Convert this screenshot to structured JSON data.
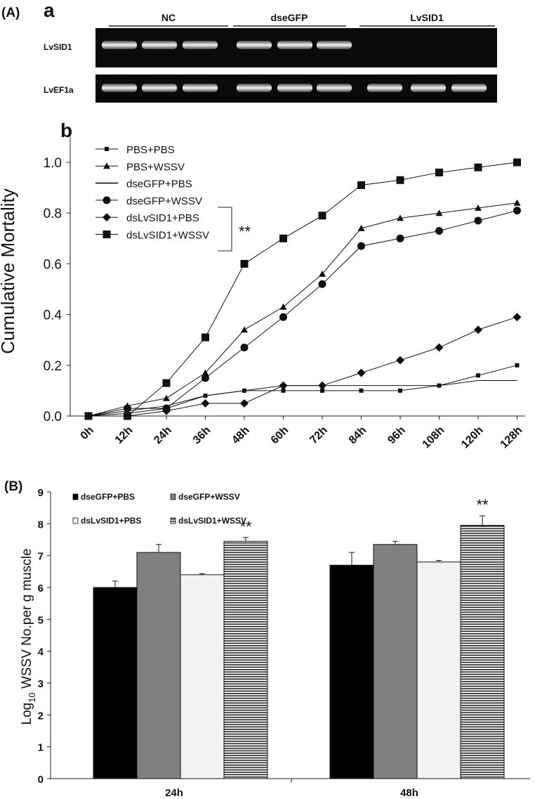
{
  "panelA": {
    "label": "(A)",
    "sublabel": "a",
    "groups": [
      "NC",
      "dseGFP",
      "LvSID1"
    ],
    "rows": [
      "LvSID1",
      "LvEF1a"
    ]
  },
  "chart_data": [
    {
      "type": "line",
      "panel": "b",
      "xlabel": "",
      "ylabel": "Cumulative Mortality",
      "x": [
        "0h",
        "12h",
        "24h",
        "36h",
        "48h",
        "60h",
        "72h",
        "84h",
        "96h",
        "108h",
        "120h",
        "128h"
      ],
      "ylim": [
        0,
        1.0
      ],
      "yticks": [
        "0.0",
        "0.2",
        "0.4",
        "0.6",
        "0.8",
        "1.0"
      ],
      "legend_position": "top-left",
      "significance": "**",
      "series": [
        {
          "name": "PBS+PBS",
          "marker": "small-square",
          "values": [
            0.0,
            0.01,
            0.03,
            0.08,
            0.1,
            0.1,
            0.1,
            0.1,
            0.1,
            0.12,
            0.16,
            0.2
          ]
        },
        {
          "name": "PBS+WSSV",
          "marker": "triangle",
          "values": [
            0.0,
            0.04,
            0.07,
            0.17,
            0.34,
            0.43,
            0.56,
            0.74,
            0.78,
            0.8,
            0.82,
            0.84
          ]
        },
        {
          "name": "dseGFP+PBS",
          "marker": "dash",
          "values": [
            0.0,
            0.02,
            0.04,
            0.08,
            0.1,
            0.12,
            0.12,
            0.12,
            0.12,
            0.12,
            0.14,
            0.14
          ]
        },
        {
          "name": "dseGFP+WSSV",
          "marker": "circle",
          "values": [
            0.0,
            0.03,
            0.03,
            0.15,
            0.27,
            0.39,
            0.52,
            0.67,
            0.7,
            0.73,
            0.77,
            0.81
          ]
        },
        {
          "name": "dsLvSID1+PBS",
          "marker": "diamond",
          "values": [
            0.0,
            0.0,
            0.02,
            0.05,
            0.05,
            0.12,
            0.12,
            0.17,
            0.22,
            0.27,
            0.34,
            0.39
          ]
        },
        {
          "name": "dsLvSID1+WSSV",
          "marker": "big-square",
          "values": [
            0.0,
            0.0,
            0.13,
            0.31,
            0.6,
            0.7,
            0.79,
            0.91,
            0.93,
            0.96,
            0.98,
            1.0
          ]
        }
      ]
    },
    {
      "type": "bar",
      "panel": "(B)",
      "ylabel_pre": "Log",
      "ylabel_sub": "10",
      "ylabel_post": " WSSV No.per g muscle",
      "categories": [
        "24h",
        "48h"
      ],
      "ylim": [
        0,
        9
      ],
      "yticks": [
        "0",
        "1",
        "2",
        "3",
        "4",
        "5",
        "6",
        "7",
        "8",
        "9"
      ],
      "significance": "**",
      "series": [
        {
          "name": "dseGFP+PBS",
          "fill": "#000000",
          "values": [
            6.0,
            6.7
          ],
          "errors": [
            0.2,
            0.4
          ]
        },
        {
          "name": "dseGFP+WSSV",
          "fill": "#808080",
          "values": [
            7.1,
            7.35
          ],
          "errors": [
            0.25,
            0.1
          ]
        },
        {
          "name": "dsLvSID1+PBS",
          "fill": "#f2f2f2",
          "values": [
            6.4,
            6.8
          ],
          "errors": [
            0.03,
            0.05
          ]
        },
        {
          "name": "dsLvSID1+WSSV",
          "fill": "stripes",
          "values": [
            7.45,
            7.95
          ],
          "errors": [
            0.12,
            0.3
          ]
        }
      ]
    }
  ]
}
